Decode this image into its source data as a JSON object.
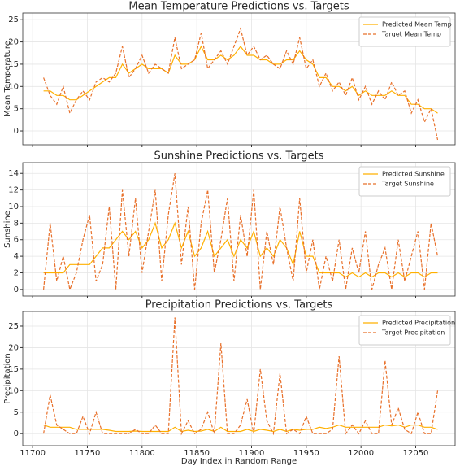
{
  "chart_data": [
    {
      "type": "line",
      "title": "Mean Temperature Predictions vs. Targets",
      "ylabel": "Mean Temperature",
      "x": [
        11710,
        11716,
        11722,
        11728,
        11734,
        11740,
        11746,
        11752,
        11758,
        11764,
        11770,
        11776,
        11782,
        11788,
        11794,
        11800,
        11806,
        11812,
        11818,
        11824,
        11830,
        11836,
        11842,
        11848,
        11854,
        11860,
        11866,
        11872,
        11878,
        11884,
        11890,
        11896,
        11902,
        11908,
        11914,
        11920,
        11926,
        11932,
        11938,
        11944,
        11950,
        11956,
        11962,
        11968,
        11974,
        11980,
        11986,
        11992,
        11998,
        12004,
        12010,
        12016,
        12022,
        12028,
        12034,
        12040,
        12046,
        12052,
        12058,
        12064,
        12070
      ],
      "series": [
        {
          "name": "Predicted Mean Temp",
          "color": "#ffb000",
          "linestyle": "solid",
          "values": [
            9,
            9,
            8,
            8,
            7,
            7,
            8,
            9,
            10,
            11,
            12,
            12,
            15,
            13,
            14,
            15,
            14,
            14,
            14,
            13,
            17,
            15,
            15,
            16,
            19,
            16,
            16,
            17,
            16,
            17,
            19,
            17,
            17,
            16,
            16,
            15,
            15,
            16,
            16,
            18,
            16,
            15,
            12,
            12,
            10,
            10,
            9,
            10,
            8,
            9,
            8,
            8,
            8,
            9,
            8,
            8,
            6,
            6,
            5,
            5,
            4
          ]
        },
        {
          "name": "Target Mean Temp",
          "color": "#e8702a",
          "linestyle": "dashed",
          "values": [
            12,
            8,
            6,
            10,
            4,
            7,
            9,
            7,
            11,
            12,
            11,
            13,
            19,
            12,
            14,
            17,
            13,
            15,
            14,
            13,
            21,
            14,
            15,
            16,
            22,
            14,
            16,
            18,
            15,
            19,
            23,
            17,
            19,
            16,
            17,
            15,
            14,
            18,
            15,
            21,
            14,
            16,
            10,
            13,
            9,
            11,
            8,
            12,
            7,
            10,
            6,
            9,
            7,
            11,
            8,
            9,
            4,
            7,
            2,
            5,
            -2
          ]
        }
      ],
      "xlim": [
        11691,
        12086
      ],
      "xticks": [
        11700,
        11750,
        11800,
        11850,
        11900,
        11950,
        12000,
        12050
      ],
      "ylim": [
        -3.1,
        26.5
      ],
      "yticks": [
        0,
        5,
        10,
        15,
        20,
        25
      ],
      "grid": true,
      "legend": "upper right"
    },
    {
      "type": "line",
      "title": "Sunshine Predictions vs. Targets",
      "ylabel": "Sunshine",
      "x": [
        11710,
        11716,
        11722,
        11728,
        11734,
        11740,
        11746,
        11752,
        11758,
        11764,
        11770,
        11776,
        11782,
        11788,
        11794,
        11800,
        11806,
        11812,
        11818,
        11824,
        11830,
        11836,
        11842,
        11848,
        11854,
        11860,
        11866,
        11872,
        11878,
        11884,
        11890,
        11896,
        11902,
        11908,
        11914,
        11920,
        11926,
        11932,
        11938,
        11944,
        11950,
        11956,
        11962,
        11968,
        11974,
        11980,
        11986,
        11992,
        11998,
        12004,
        12010,
        12016,
        12022,
        12028,
        12034,
        12040,
        12046,
        12052,
        12058,
        12064,
        12070
      ],
      "series": [
        {
          "name": "Predicted Sunshine",
          "color": "#ffb000",
          "linestyle": "solid",
          "values": [
            2,
            2,
            2,
            2,
            3,
            3,
            3,
            3,
            4,
            5,
            5,
            6,
            7,
            6,
            7,
            5,
            6,
            8,
            5,
            6,
            8,
            5,
            7,
            4,
            5,
            7,
            4,
            5,
            6,
            4,
            6,
            5,
            7,
            4,
            5,
            4,
            6,
            5,
            3,
            7,
            4,
            4,
            2,
            2,
            2,
            2,
            1.5,
            2,
            1.5,
            2,
            1.5,
            2,
            2,
            1.5,
            2,
            1.5,
            2,
            2,
            1.5,
            2,
            2
          ]
        },
        {
          "name": "Target Sunshine",
          "color": "#e8702a",
          "linestyle": "dashed",
          "values": [
            0,
            8,
            1,
            4,
            0,
            2,
            6,
            9,
            1,
            3,
            10,
            0,
            12,
            4,
            11,
            2,
            7,
            12,
            1,
            9,
            14,
            3,
            10,
            0,
            8,
            12,
            2,
            6,
            11,
            1,
            9,
            4,
            12,
            0,
            7,
            3,
            10,
            5,
            1,
            11,
            2,
            6,
            0,
            4,
            1,
            6,
            0,
            5,
            2,
            7,
            0,
            3,
            5,
            0,
            6,
            1,
            4,
            7,
            0,
            8,
            4
          ]
        }
      ],
      "xlim": [
        11691,
        12086
      ],
      "xticks": [
        11700,
        11750,
        11800,
        11850,
        11900,
        11950,
        12000,
        12050
      ],
      "ylim": [
        -0.8,
        15.3
      ],
      "yticks": [
        0,
        2,
        4,
        6,
        8,
        10,
        12,
        14
      ],
      "grid": true,
      "legend": "upper right"
    },
    {
      "type": "line",
      "title": "Precipitation Predictions vs. Targets",
      "ylabel": "Precipitation",
      "xlabel": "Day Index in Random Range",
      "x": [
        11710,
        11716,
        11722,
        11728,
        11734,
        11740,
        11746,
        11752,
        11758,
        11764,
        11770,
        11776,
        11782,
        11788,
        11794,
        11800,
        11806,
        11812,
        11818,
        11824,
        11830,
        11836,
        11842,
        11848,
        11854,
        11860,
        11866,
        11872,
        11878,
        11884,
        11890,
        11896,
        11902,
        11908,
        11914,
        11920,
        11926,
        11932,
        11938,
        11944,
        11950,
        11956,
        11962,
        11968,
        11974,
        11980,
        11986,
        11992,
        11998,
        12004,
        12010,
        12016,
        12022,
        12028,
        12034,
        12040,
        12046,
        12052,
        12058,
        12064,
        12070
      ],
      "series": [
        {
          "name": "Predicted Precipitation",
          "color": "#ffb000",
          "linestyle": "solid",
          "values": [
            2,
            1.5,
            1.5,
            1.5,
            1.5,
            1,
            1,
            1,
            1,
            1,
            0.8,
            0.5,
            0.5,
            0.5,
            0.6,
            0.5,
            0.5,
            0.5,
            0.5,
            0.5,
            1.5,
            0.5,
            0.8,
            0.5,
            0.6,
            1,
            0.5,
            1.5,
            0.5,
            0.5,
            0.5,
            1,
            0.5,
            1,
            0.8,
            0.5,
            1,
            0.5,
            1,
            0.8,
            1,
            1,
            1.5,
            1.2,
            1.5,
            2,
            1.5,
            1.5,
            1.5,
            1.5,
            1.5,
            1.5,
            2,
            1.8,
            2,
            1.5,
            2,
            2,
            1.5,
            1.5,
            1
          ]
        },
        {
          "name": "Target Precipitation",
          "color": "#e8702a",
          "linestyle": "dashed",
          "values": [
            0,
            9,
            2,
            1,
            0,
            0,
            4,
            0,
            5,
            0,
            0,
            0,
            0,
            0,
            1,
            0,
            0,
            2,
            0,
            0,
            27,
            0,
            3,
            0,
            1,
            5,
            0,
            21,
            0,
            0,
            2,
            8,
            0,
            15,
            3,
            0,
            14,
            0,
            1,
            0,
            4,
            0,
            0,
            0,
            1,
            18,
            0,
            2,
            0,
            3,
            0,
            0,
            17,
            2,
            6,
            1,
            0,
            5,
            0,
            0,
            10
          ]
        }
      ],
      "xlim": [
        11691,
        12086
      ],
      "xticks": [
        11700,
        11750,
        11800,
        11850,
        11900,
        11950,
        12000,
        12050
      ],
      "ylim": [
        -2.8,
        28.4
      ],
      "yticks": [
        0,
        5,
        10,
        15,
        20,
        25
      ],
      "grid": true,
      "legend": "upper right"
    }
  ]
}
